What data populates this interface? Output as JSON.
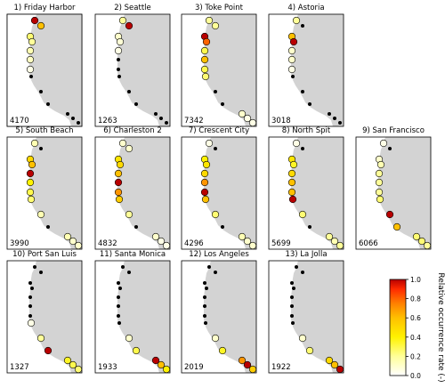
{
  "figure": {
    "colorbar": {
      "label": "Relative occurrence rate (-)",
      "ticks": [
        "1.0",
        "0.8",
        "0.6",
        "0.4",
        "0.2",
        "0.0"
      ],
      "colors": [
        "#ffffff",
        "#ffff99",
        "#fff200",
        "#ffc000",
        "#ff8000",
        "#ff2a00",
        "#b80000"
      ]
    },
    "map_colors": {
      "land": "#d3d3d3",
      "sea": "#ffffff",
      "marker_edge": "#000000"
    },
    "key_map": {
      "station_numbers": [
        "1",
        "2",
        "3",
        "4",
        "5",
        "6",
        "7",
        "8",
        "9",
        "10",
        "11",
        "12",
        "13"
      ]
    }
  },
  "chart_data": {
    "type": "scatter",
    "description_units": "relative occurrence rate (0-1) at each of 13 tide-gauge stations, one panel per reference station",
    "stations": [
      "1",
      "2",
      "3",
      "4",
      "5",
      "6",
      "7",
      "8",
      "9",
      "10",
      "11",
      "12",
      "13"
    ],
    "panels": [
      {
        "title": "1) Friday Harbor",
        "count": "4170",
        "values": [
          1.0,
          0.6,
          0.25,
          0.2,
          0.15,
          0.12,
          0.05,
          null,
          null,
          null,
          null,
          null,
          null
        ]
      },
      {
        "title": "2) Seattle",
        "count": "1263",
        "values": [
          0.2,
          1.0,
          0.1,
          0.08,
          0.05,
          null,
          null,
          null,
          null,
          null,
          null,
          null,
          null
        ]
      },
      {
        "title": "3) Toke Point",
        "count": "7342",
        "values": [
          0.2,
          0.2,
          1.0,
          0.8,
          0.3,
          0.6,
          0.3,
          0.25,
          null,
          null,
          0.1,
          0.05,
          0.05
        ]
      },
      {
        "title": "4) Astoria",
        "count": "3018",
        "values": [
          0.2,
          null,
          0.6,
          1.0,
          0.1,
          0.1,
          0.05,
          null,
          null,
          null,
          null,
          null,
          null
        ]
      },
      {
        "title": "5) South Beach",
        "count": "3990",
        "values": [
          0.15,
          null,
          0.5,
          0.6,
          1.0,
          0.4,
          0.3,
          0.25,
          0.15,
          null,
          0.15,
          0.1,
          0.1
        ]
      },
      {
        "title": "6) Charleston 2",
        "count": "4832",
        "values": [
          0.1,
          0.1,
          0.45,
          0.5,
          0.6,
          1.0,
          0.7,
          0.55,
          0.2,
          null,
          0.1,
          0.05,
          0.05
        ]
      },
      {
        "title": "7) Crescent City",
        "count": "4296",
        "values": [
          0.05,
          null,
          0.4,
          0.45,
          0.5,
          0.7,
          1.0,
          0.6,
          0.25,
          null,
          0.15,
          0.1,
          0.1
        ]
      },
      {
        "title": "8) North Spit",
        "count": "5699",
        "values": [
          0.05,
          null,
          0.45,
          0.35,
          0.5,
          0.6,
          0.6,
          1.0,
          0.25,
          null,
          0.2,
          0.15,
          0.2
        ]
      },
      {
        "title": "9) San Francisco",
        "count": "6066",
        "values": [
          0.05,
          null,
          0.1,
          0.15,
          0.2,
          0.2,
          0.2,
          0.25,
          1.0,
          0.6,
          0.25,
          0.25,
          0.2
        ]
      },
      {
        "title": "10) Port  San Luis",
        "count": "1327",
        "values": [
          null,
          null,
          null,
          null,
          null,
          null,
          null,
          0.05,
          0.2,
          1.0,
          0.35,
          0.3,
          0.25
        ]
      },
      {
        "title": "11) Santa Monica",
        "count": "1933",
        "values": [
          null,
          null,
          null,
          null,
          null,
          null,
          null,
          null,
          0.1,
          0.3,
          1.0,
          0.6,
          0.4
        ]
      },
      {
        "title": "12) Los Angeles",
        "count": "2019",
        "values": [
          null,
          null,
          null,
          null,
          null,
          null,
          null,
          null,
          0.1,
          0.35,
          0.7,
          1.0,
          0.55
        ]
      },
      {
        "title": "13) La Jolla",
        "count": "1922",
        "values": [
          null,
          null,
          null,
          null,
          null,
          null,
          null,
          null,
          0.1,
          0.25,
          0.5,
          0.6,
          1.0
        ]
      }
    ]
  }
}
